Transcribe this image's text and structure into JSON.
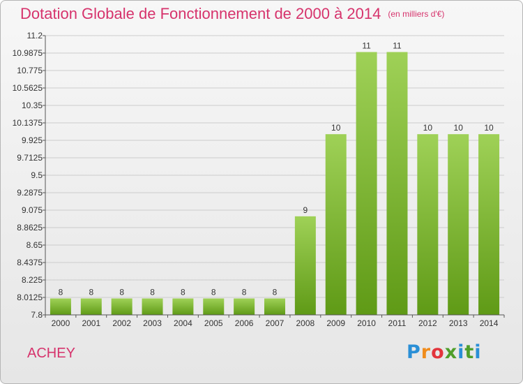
{
  "header": {
    "title": "Dotation Globale de Fonctionnement de 2000 à 2014",
    "unit": "(en milliers d'€)"
  },
  "footer": {
    "commune": "ACHEY",
    "logo_letters": [
      "P",
      "r",
      "o",
      "x",
      "i",
      "t",
      "i"
    ]
  },
  "colors": {
    "title": "#d6336c",
    "bar_top": "#9fd157",
    "bar_bottom": "#5f9a16",
    "grid": "#cccccc"
  },
  "chart_data": {
    "type": "bar",
    "title": "Dotation Globale de Fonctionnement de 2000 à 2014",
    "xlabel": "",
    "ylabel": "",
    "categories": [
      "2000",
      "2001",
      "2002",
      "2003",
      "2004",
      "2005",
      "2006",
      "2007",
      "2008",
      "2009",
      "2010",
      "2011",
      "2012",
      "2013",
      "2014"
    ],
    "values": [
      8,
      8,
      8,
      8,
      8,
      8,
      8,
      8,
      9,
      10,
      11,
      11,
      10,
      10,
      10
    ],
    "data_labels": [
      "8",
      "8",
      "8",
      "8",
      "8",
      "8",
      "8",
      "8",
      "9",
      "10",
      "11",
      "11",
      "10",
      "10",
      "10"
    ],
    "ylim": [
      7.8,
      11.2
    ],
    "yticks": [
      7.8,
      8.0125,
      8.225,
      8.4375,
      8.65,
      8.8625,
      9.075,
      9.2875,
      9.5,
      9.7125,
      9.925,
      10.1375,
      10.35,
      10.5625,
      10.775,
      10.9875,
      11.2
    ],
    "ytick_labels": [
      "7.8",
      "8.0125",
      "8.225",
      "8.4375",
      "8.65",
      "8.8625",
      "9.075",
      "9.2875",
      "9.5",
      "9.7125",
      "9.925",
      "10.1375",
      "10.35",
      "10.5625",
      "10.775",
      "10.9875",
      "11.2"
    ],
    "grid": true,
    "legend": "none"
  }
}
